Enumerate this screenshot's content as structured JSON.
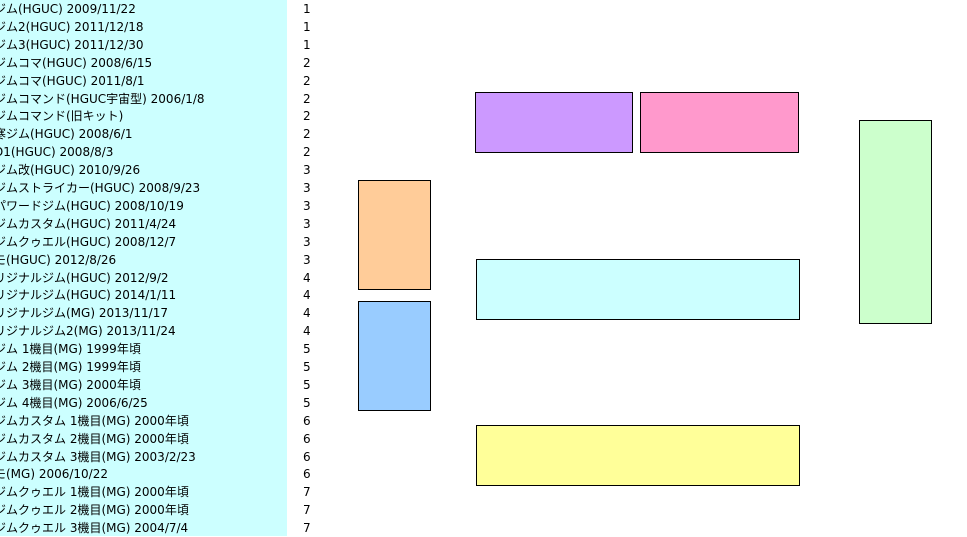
{
  "rows": [
    {
      "label": "ジム(HGUC) 2009/11/22",
      "value": "1"
    },
    {
      "label": "ジム2(HGUC) 2011/12/18",
      "value": "1"
    },
    {
      "label": "ジム3(HGUC) 2011/12/30",
      "value": "1"
    },
    {
      "label": "ジムコマ(HGUC) 2008/6/15",
      "value": "2"
    },
    {
      "label": "ジムコマ(HGUC) 2011/8/1",
      "value": "2"
    },
    {
      "label": "ジムコマンド(HGUC宇宙型) 2006/1/8",
      "value": "2"
    },
    {
      "label": "ジムコマンド(旧キット)",
      "value": "2"
    },
    {
      "label": "寒ジム(HGUC) 2008/6/1",
      "value": "2"
    },
    {
      "label": "D1(HGUC) 2008/8/3",
      "value": "2"
    },
    {
      "label": "ジム改(HGUC) 2010/9/26",
      "value": "3"
    },
    {
      "label": "ジムストライカー(HGUC) 2008/9/23",
      "value": "3"
    },
    {
      "label": "パワードジム(HGUC) 2008/10/19",
      "value": "3"
    },
    {
      "label": "ジムカスタム(HGUC) 2011/4/24",
      "value": "3"
    },
    {
      "label": "ジムクゥエル(HGUC) 2008/12/7",
      "value": "3"
    },
    {
      "label": "モ(HGUC) 2012/8/26",
      "value": "3"
    },
    {
      "label": "リジナルジム(HGUC) 2012/9/2",
      "value": "4"
    },
    {
      "label": "リジナルジム(HGUC) 2014/1/11",
      "value": "4"
    },
    {
      "label": "リジナルジム(MG) 2013/11/17",
      "value": "4"
    },
    {
      "label": "リジナルジム2(MG) 2013/11/24",
      "value": "4"
    },
    {
      "label": "ジム 1機目(MG) 1999年頃",
      "value": "5"
    },
    {
      "label": "ジム 2機目(MG) 1999年頃",
      "value": "5"
    },
    {
      "label": "ジム 3機目(MG) 2000年頃",
      "value": "5"
    },
    {
      "label": "ジム 4機目(MG) 2006/6/25",
      "value": "5"
    },
    {
      "label": "ジムカスタム 1機目(MG) 2000年頃",
      "value": "6"
    },
    {
      "label": "ジムカスタム 2機目(MG) 2000年頃",
      "value": "6"
    },
    {
      "label": "ジムカスタム 3機目(MG) 2003/2/23",
      "value": "6"
    },
    {
      "label": "モ(MG) 2006/10/22",
      "value": "6"
    },
    {
      "label": "ジムクゥエル 1機目(MG) 2000年頃",
      "value": "7"
    },
    {
      "label": "ジムクゥエル 2機目(MG) 2000年頃",
      "value": "7"
    },
    {
      "label": "ジムクゥエル 3機目(MG) 2004/7/4",
      "value": "7"
    }
  ],
  "boxes": [
    {
      "name": "purple-box",
      "color": "#cc99ff"
    },
    {
      "name": "pink-box",
      "color": "#ff99cc"
    },
    {
      "name": "orange-box",
      "color": "#ffcc99"
    },
    {
      "name": "blue-box",
      "color": "#99ccff"
    },
    {
      "name": "cyan-box",
      "color": "#ccffff"
    },
    {
      "name": "yellow-box",
      "color": "#ffff99"
    },
    {
      "name": "green-box",
      "color": "#ccffcc"
    }
  ]
}
